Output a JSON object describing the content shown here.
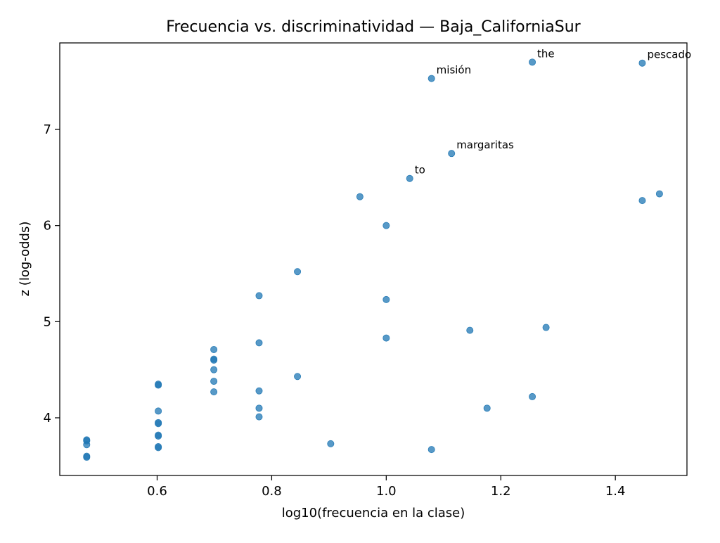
{
  "chart_data": {
    "type": "scatter",
    "title": "Frecuencia vs. discriminatividad — Baja_CaliforniaSur",
    "xlabel": "log10(frecuencia en la clase)",
    "ylabel": "z (log-odds)",
    "xlim": [
      0.43,
      1.525
    ],
    "ylim": [
      3.4,
      7.9
    ],
    "xticks": [
      0.6,
      0.8,
      1.0,
      1.2,
      1.4
    ],
    "xtick_labels": [
      "0.6",
      "0.8",
      "1.0",
      "1.2",
      "1.4"
    ],
    "yticks": [
      4,
      5,
      6,
      7
    ],
    "ytick_labels": [
      "4",
      "5",
      "6",
      "7"
    ],
    "grid": false,
    "marker_color": "#1f77b4",
    "points": [
      {
        "x": 0.477,
        "y": 3.77
      },
      {
        "x": 0.477,
        "y": 3.76
      },
      {
        "x": 0.477,
        "y": 3.72
      },
      {
        "x": 0.477,
        "y": 3.6
      },
      {
        "x": 0.477,
        "y": 3.59
      },
      {
        "x": 0.602,
        "y": 4.35
      },
      {
        "x": 0.602,
        "y": 4.34
      },
      {
        "x": 0.602,
        "y": 4.07
      },
      {
        "x": 0.602,
        "y": 3.95
      },
      {
        "x": 0.602,
        "y": 3.94
      },
      {
        "x": 0.602,
        "y": 3.82
      },
      {
        "x": 0.602,
        "y": 3.81
      },
      {
        "x": 0.602,
        "y": 3.7
      },
      {
        "x": 0.602,
        "y": 3.69
      },
      {
        "x": 0.699,
        "y": 4.71
      },
      {
        "x": 0.699,
        "y": 4.61
      },
      {
        "x": 0.699,
        "y": 4.6
      },
      {
        "x": 0.699,
        "y": 4.5
      },
      {
        "x": 0.699,
        "y": 4.38
      },
      {
        "x": 0.699,
        "y": 4.27
      },
      {
        "x": 0.778,
        "y": 5.27
      },
      {
        "x": 0.778,
        "y": 4.78
      },
      {
        "x": 0.778,
        "y": 4.28
      },
      {
        "x": 0.778,
        "y": 4.1
      },
      {
        "x": 0.778,
        "y": 4.01
      },
      {
        "x": 0.845,
        "y": 5.52
      },
      {
        "x": 0.845,
        "y": 4.43
      },
      {
        "x": 0.903,
        "y": 3.73
      },
      {
        "x": 0.954,
        "y": 6.3
      },
      {
        "x": 1.0,
        "y": 6.0
      },
      {
        "x": 1.0,
        "y": 5.23
      },
      {
        "x": 1.0,
        "y": 4.83
      },
      {
        "x": 1.041,
        "y": 6.49,
        "label": "to"
      },
      {
        "x": 1.079,
        "y": 7.53,
        "label": "misión"
      },
      {
        "x": 1.079,
        "y": 3.67
      },
      {
        "x": 1.114,
        "y": 6.75,
        "label": "margaritas"
      },
      {
        "x": 1.146,
        "y": 4.91
      },
      {
        "x": 1.176,
        "y": 4.1
      },
      {
        "x": 1.255,
        "y": 7.7,
        "label": "the"
      },
      {
        "x": 1.255,
        "y": 4.22
      },
      {
        "x": 1.279,
        "y": 4.94
      },
      {
        "x": 1.447,
        "y": 7.69,
        "label": "pescado"
      },
      {
        "x": 1.447,
        "y": 6.26
      },
      {
        "x": 1.477,
        "y": 6.33
      }
    ]
  }
}
